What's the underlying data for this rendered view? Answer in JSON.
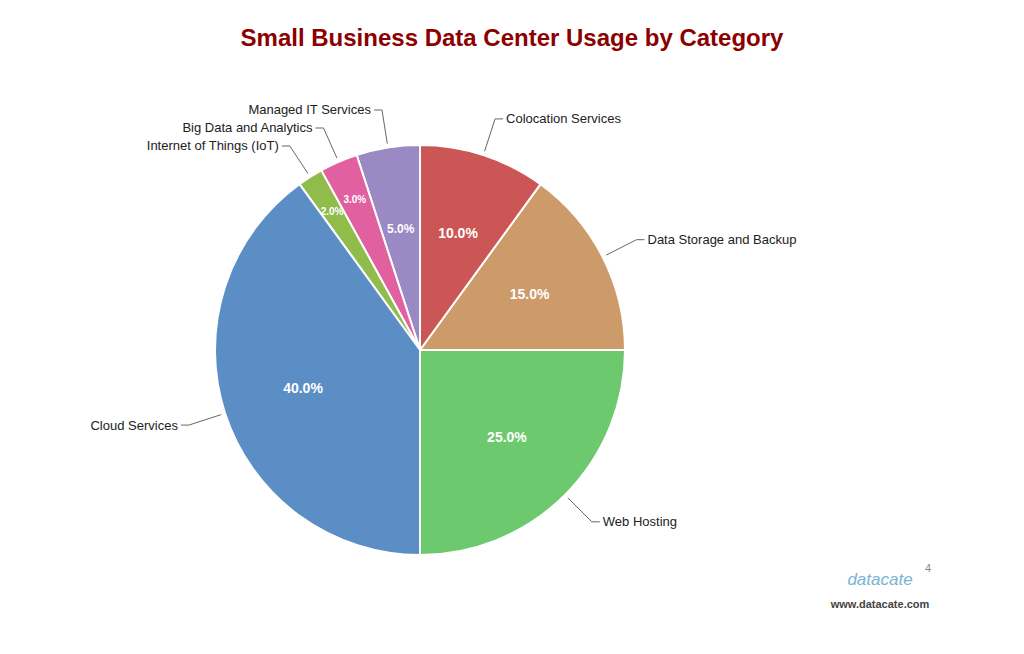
{
  "chart_data": {
    "type": "pie",
    "title": "Small Business Data Center Usage by Category",
    "categories": [
      "Web Hosting",
      "Data Storage and Backup",
      "Colocation Services",
      "Managed IT Services",
      "Big Data and Analytics",
      "Internet of Things (IoT)",
      "Cloud Services"
    ],
    "values": [
      25.0,
      15.0,
      10.0,
      5.0,
      3.0,
      2.0,
      40.0
    ],
    "value_labels": [
      "25.0%",
      "15.0%",
      "10.0%",
      "5.0%",
      "3.0%",
      "2.0%",
      "40.0%"
    ],
    "colors": [
      "#6DC96D",
      "#CD9B6A",
      "#CC5555",
      "#9B89C4",
      "#E060A0",
      "#8FBC4A",
      "#5B8EC5"
    ],
    "data_labels": true,
    "annotations": [
      "datacate",
      "4",
      "www.datacate.com"
    ]
  }
}
